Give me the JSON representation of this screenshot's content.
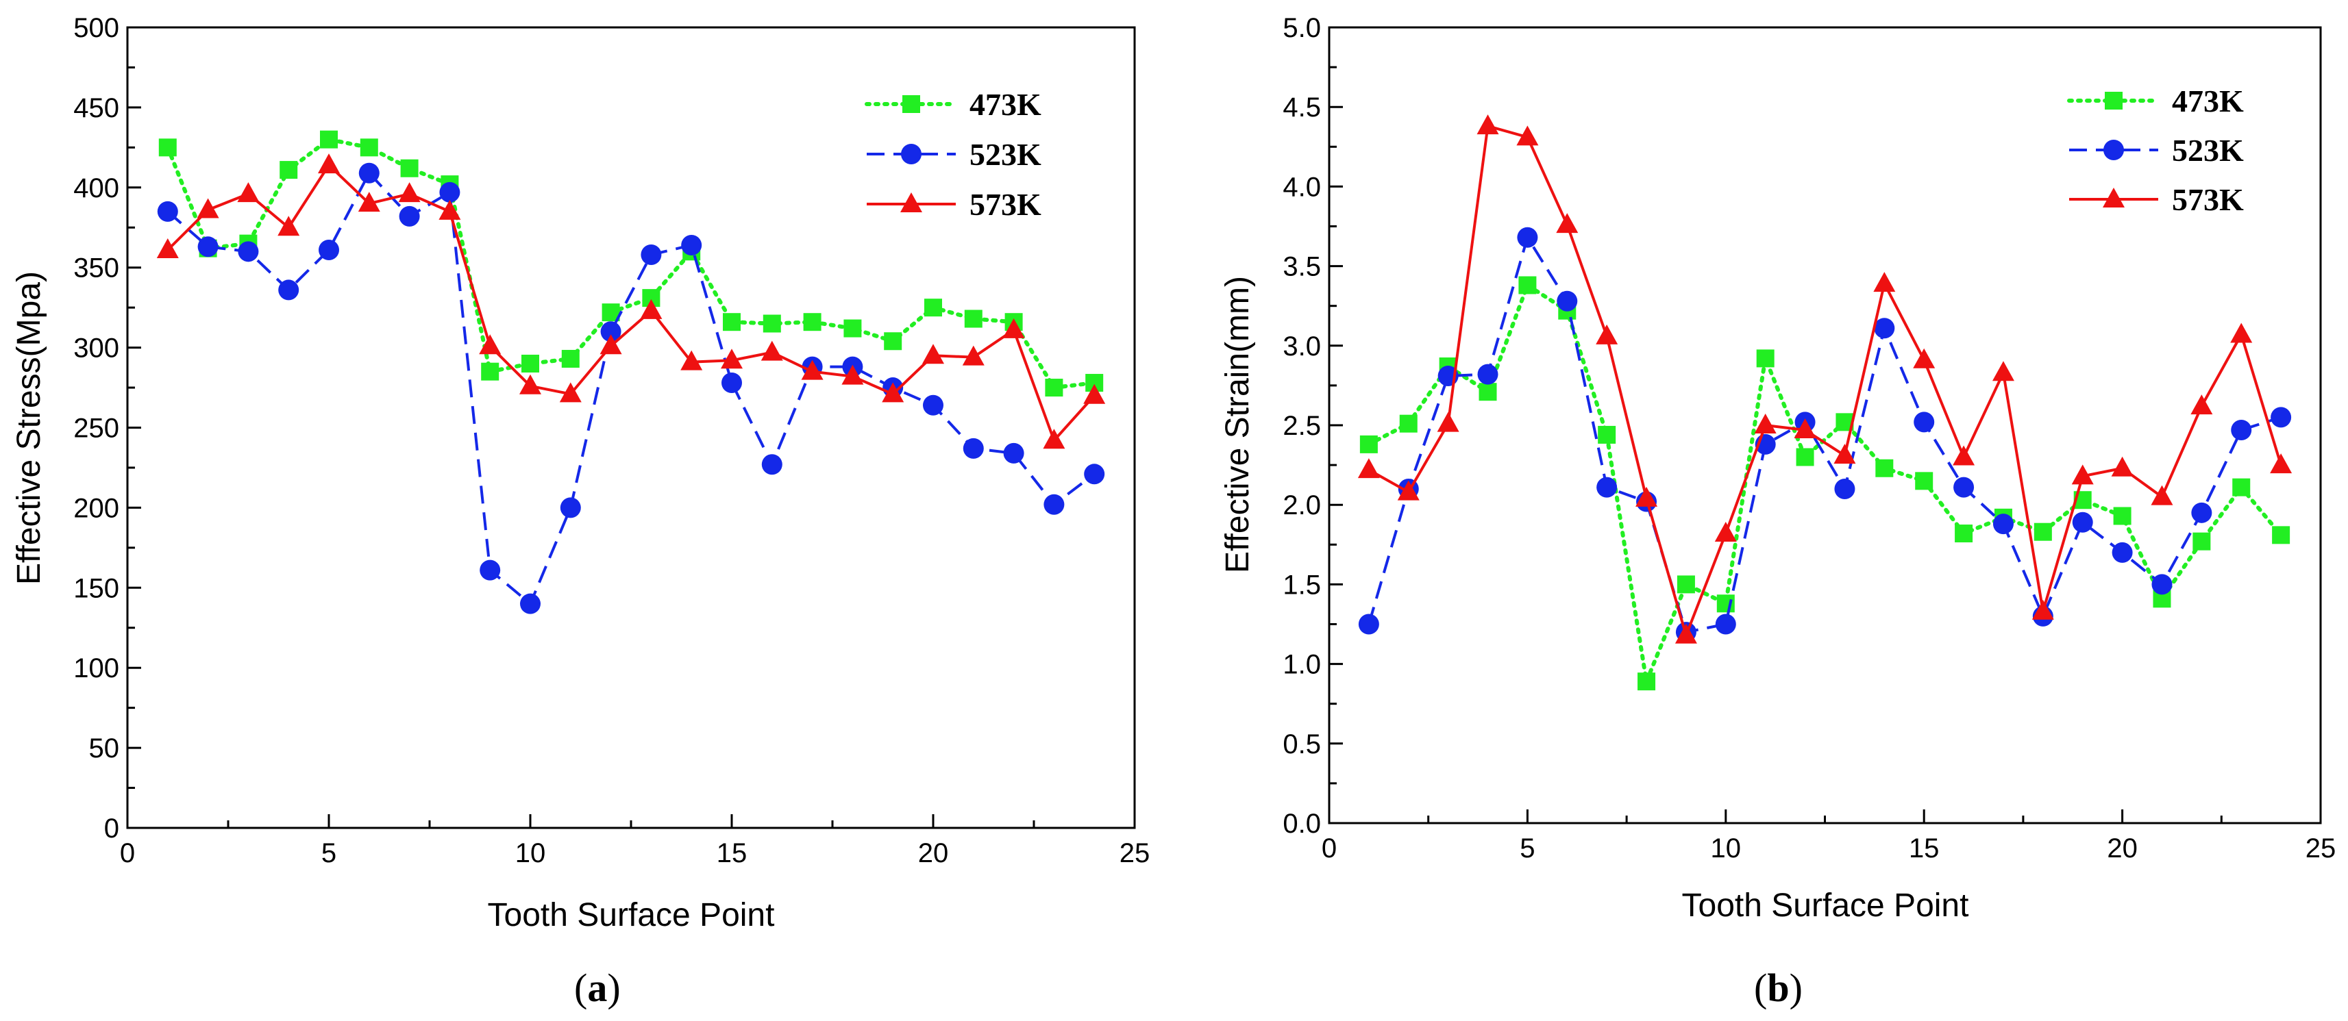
{
  "chart_data": [
    {
      "type": "line",
      "panel": "a",
      "caption": "a",
      "xlabel": "Tooth Surface Point",
      "ylabel": "Effective Stress(Mpa)",
      "xlim": [
        0,
        25
      ],
      "ylim": [
        0,
        500
      ],
      "xticks": [
        0,
        5,
        10,
        15,
        20,
        25
      ],
      "yticks": [
        0,
        50,
        100,
        150,
        200,
        250,
        300,
        350,
        400,
        450,
        500
      ],
      "legend_position": "top-right",
      "grid": false,
      "x": [
        1,
        2,
        3,
        4,
        5,
        6,
        7,
        8,
        9,
        10,
        11,
        12,
        13,
        14,
        15,
        16,
        17,
        18,
        19,
        20,
        21,
        22,
        23,
        24
      ],
      "series": [
        {
          "name": "473K",
          "color": "#22ee22",
          "line": "dotted",
          "marker": "square",
          "values": [
            425,
            362,
            365,
            411,
            430,
            425,
            412,
            402,
            285,
            290,
            293,
            322,
            331,
            360,
            316,
            315,
            316,
            312,
            304,
            325,
            318,
            316,
            275,
            278
          ]
        },
        {
          "name": "523K",
          "color": "#1428e8",
          "line": "dashed",
          "marker": "circle",
          "values": [
            385,
            363,
            360,
            336,
            361,
            409,
            382,
            397,
            161,
            140,
            200,
            310,
            358,
            364,
            278,
            227,
            288,
            288,
            275,
            264,
            237,
            234,
            202,
            221
          ]
        },
        {
          "name": "573K",
          "color": "#ee1111",
          "line": "solid",
          "marker": "triangle",
          "values": [
            361,
            386,
            396,
            375,
            414,
            390,
            396,
            385,
            301,
            276,
            271,
            301,
            323,
            291,
            292,
            297,
            285,
            282,
            271,
            295,
            294,
            311,
            242,
            270
          ]
        }
      ]
    },
    {
      "type": "line",
      "panel": "b",
      "caption": "b",
      "xlabel": "Tooth Surface Point",
      "ylabel": "Effective Strain(mm)",
      "xlim": [
        0,
        25
      ],
      "ylim": [
        0,
        5.0
      ],
      "xticks": [
        0,
        5,
        10,
        15,
        20,
        25
      ],
      "yticks": [
        "0.0",
        "0.5",
        "1.0",
        "1.5",
        "2.0",
        "2.5",
        "3.0",
        "3.5",
        "4.0",
        "4.5",
        "5.0"
      ],
      "legend_position": "top-right",
      "grid": false,
      "x": [
        1,
        2,
        3,
        4,
        5,
        6,
        7,
        8,
        9,
        10,
        11,
        12,
        13,
        14,
        15,
        16,
        17,
        18,
        19,
        20,
        21,
        22,
        23,
        24
      ],
      "series": [
        {
          "name": "473K",
          "color": "#22ee22",
          "line": "dotted",
          "marker": "square",
          "values": [
            2.38,
            2.51,
            2.87,
            2.71,
            3.38,
            3.22,
            2.44,
            0.89,
            1.5,
            1.38,
            2.92,
            2.3,
            2.52,
            2.23,
            2.15,
            1.82,
            1.92,
            1.83,
            2.03,
            1.93,
            1.41,
            1.77,
            2.11,
            1.81
          ]
        },
        {
          "name": "523K",
          "color": "#1428e8",
          "line": "dashed",
          "marker": "circle",
          "values": [
            1.25,
            2.1,
            2.81,
            2.82,
            3.68,
            3.28,
            2.11,
            2.02,
            1.2,
            1.25,
            2.38,
            2.52,
            2.1,
            3.11,
            2.52,
            2.11,
            1.88,
            1.3,
            1.89,
            1.7,
            1.5,
            1.95,
            2.47,
            2.55
          ]
        },
        {
          "name": "573K",
          "color": "#ee1111",
          "line": "solid",
          "marker": "triangle",
          "values": [
            2.22,
            2.08,
            2.51,
            4.38,
            4.31,
            3.76,
            3.06,
            2.04,
            1.18,
            1.82,
            2.5,
            2.47,
            2.31,
            3.39,
            2.91,
            2.3,
            2.83,
            1.33,
            2.18,
            2.23,
            2.05,
            2.62,
            3.07,
            2.25
          ]
        }
      ]
    }
  ]
}
